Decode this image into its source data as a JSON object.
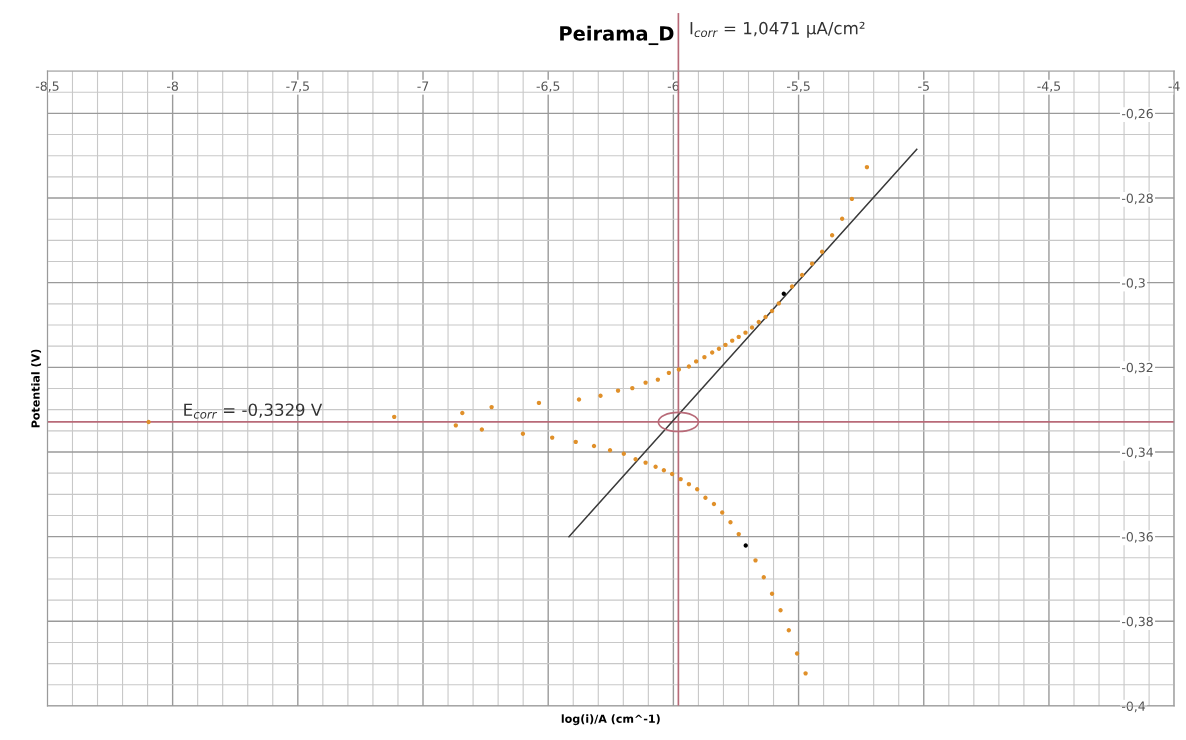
{
  "chart_data": {
    "type": "scatter",
    "title": "Peirama_D",
    "xlabel": "log(i)/A (cm^-1)",
    "ylabel": "Potential (V)",
    "xlim": [
      -8.5,
      -4
    ],
    "ylim": [
      -0.4,
      -0.25
    ],
    "xticks": [
      {
        "value": -8.5,
        "label": "-8,5"
      },
      -8,
      {
        "value": -7.5,
        "label": "-7,5"
      },
      -7,
      {
        "value": -6.5,
        "label": "-6,5"
      },
      -6,
      {
        "value": -5.5,
        "label": "-5,5"
      },
      -5,
      {
        "value": -4.5,
        "label": "-4,5"
      },
      -4
    ],
    "yticks": [
      {
        "value": -0.26,
        "label": "-0,26"
      },
      {
        "value": -0.28,
        "label": "-0,28"
      },
      {
        "value": -0.3,
        "label": "-0,3"
      },
      {
        "value": -0.32,
        "label": "-0,32"
      },
      {
        "value": -0.34,
        "label": "-0,34"
      },
      {
        "value": -0.36,
        "label": "-0,36"
      },
      {
        "value": -0.38,
        "label": "-0,38"
      },
      {
        "value": -0.4,
        "label": "-0,4"
      }
    ],
    "grid": true,
    "series": [
      {
        "type": "line",
        "marker": "none",
        "color": "#3a3a3a",
        "x": [
          -6.417,
          -5.028
        ],
        "values": [
          -0.36,
          -0.2685
        ]
      },
      {
        "marker": "circle",
        "color": "#e0902a",
        "x": [
          -8.096,
          -7.115,
          -6.843,
          -6.869,
          -6.726,
          -6.765,
          -6.601,
          -6.537,
          -6.377,
          -6.291,
          -6.221,
          -6.164,
          -6.111,
          -6.062,
          -6.018,
          -5.978,
          -5.938,
          -5.909,
          -5.876,
          -5.845,
          -5.818,
          -5.792,
          -5.765,
          -5.739,
          -5.712,
          -5.686,
          -5.659,
          -5.632,
          -5.606,
          -5.579,
          -5.526,
          -5.486,
          -5.446,
          -5.406,
          -5.366,
          -5.326,
          -5.287,
          -5.227,
          -6.484,
          -6.39,
          -6.317,
          -6.253,
          -6.198,
          -6.151,
          -6.111,
          -6.071,
          -6.038,
          -6.005,
          -5.971,
          -5.938,
          -5.905,
          -5.872,
          -5.838,
          -5.805,
          -5.772,
          -5.739,
          -5.672,
          -5.639,
          -5.606,
          -5.572,
          -5.539,
          -5.506,
          -5.472
        ],
        "values": [
          -0.3329,
          -0.3317,
          -0.3308,
          -0.3337,
          -0.3294,
          -0.3347,
          -0.3357,
          -0.3284,
          -0.3276,
          -0.3267,
          -0.3255,
          -0.3249,
          -0.3236,
          -0.3229,
          -0.3213,
          -0.3205,
          -0.3198,
          -0.3186,
          -0.3176,
          -0.3165,
          -0.3156,
          -0.3147,
          -0.3137,
          -0.3128,
          -0.3118,
          -0.3106,
          -0.3093,
          -0.3081,
          -0.3067,
          -0.3049,
          -0.3009,
          -0.2982,
          -0.2955,
          -0.2927,
          -0.2888,
          -0.2849,
          -0.2802,
          -0.2727,
          -0.3366,
          -0.3376,
          -0.3386,
          -0.3396,
          -0.3404,
          -0.3417,
          -0.3425,
          -0.3435,
          -0.3443,
          -0.3452,
          -0.3464,
          -0.3476,
          -0.3488,
          -0.3508,
          -0.3523,
          -0.3543,
          -0.3566,
          -0.3594,
          -0.3656,
          -0.3696,
          -0.3735,
          -0.3774,
          -0.3821,
          -0.3876,
          -0.3923
        ]
      },
      {
        "marker": "circle",
        "color": "#000000",
        "x": [
          -5.559,
          -5.711
        ],
        "values": [
          -0.3026,
          -0.3621
        ]
      }
    ],
    "ref_lines": [
      {
        "axis": "y",
        "value": -0.3329,
        "label": "E$_{corr}$ = -0,3329 V",
        "color": "#b86a78"
      },
      {
        "axis": "x",
        "value": -5.98,
        "label": "I$_{corr}$ = 1,0471 µA/cm²",
        "color": "#b86a78"
      }
    ]
  }
}
